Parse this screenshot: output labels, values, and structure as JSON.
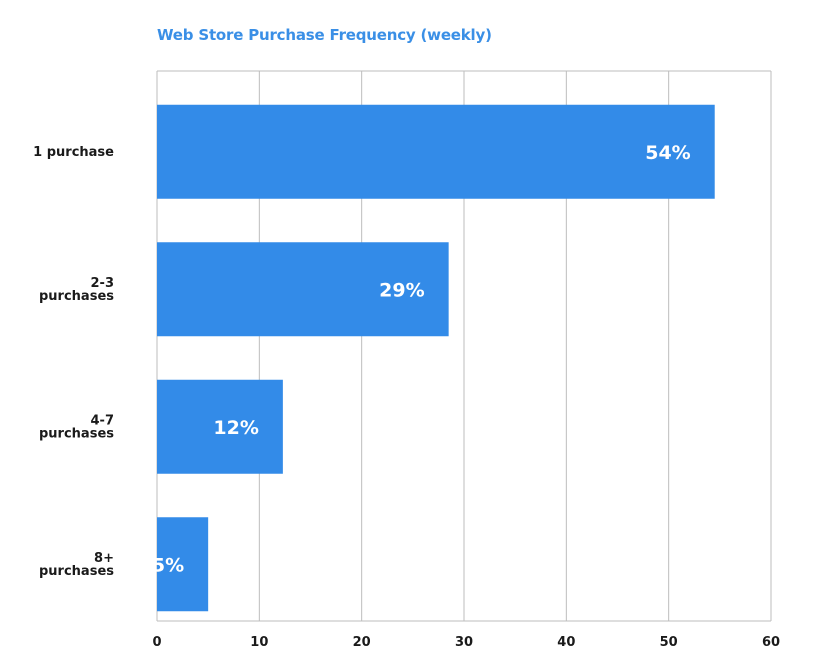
{
  "chart_data": {
    "type": "bar",
    "orientation": "horizontal",
    "title": "Web Store Purchase Frequency (weekly)",
    "categories": [
      [
        "1 purchase"
      ],
      [
        "2-3",
        "purchases"
      ],
      [
        "4-7",
        "purchases"
      ],
      [
        "8+",
        "purchases"
      ]
    ],
    "values": [
      54.5,
      28.5,
      12.3,
      5
    ],
    "data_labels": [
      "54%",
      "29%",
      "12%",
      "5%"
    ],
    "xlim": [
      0,
      60
    ],
    "xticks": [
      0,
      10,
      20,
      30,
      40,
      50,
      60
    ],
    "xlabel": "",
    "ylabel": "",
    "grid": true,
    "colors": {
      "bar": "#338be8",
      "title": "#3a8fe6",
      "grid": "#bdbdbd",
      "text": "#1a1a1a"
    }
  }
}
